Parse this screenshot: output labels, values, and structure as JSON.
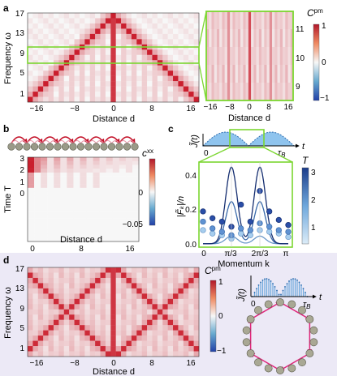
{
  "figure": {
    "panels": [
      {
        "label": "a"
      },
      {
        "label": "b"
      },
      {
        "label": "c"
      },
      {
        "label": "d"
      }
    ],
    "panel_a": {
      "ylabel": "Frequency ω",
      "xlabel": "Distance d",
      "yticks": [
        "1",
        "5",
        "9",
        "13",
        "17"
      ],
      "xticks": [
        "−16",
        "−8",
        "0",
        "8",
        "16"
      ],
      "colorbar_label": "C",
      "colorbar_sup": "pm",
      "colorbar_ticks": [
        "1",
        "0",
        "−1"
      ],
      "inset_xlabel": "Distance d",
      "inset_xticks": [
        "−16",
        "−8",
        "0",
        "8",
        "16"
      ],
      "inset_yticks": [
        "11",
        "10",
        "9"
      ]
    },
    "panel_b": {
      "ylabel": "Time T",
      "xlabel": "Distance d",
      "yticks": [
        "3",
        "2",
        "1",
        "0"
      ],
      "xticks": [
        "0",
        "8",
        "16"
      ],
      "colorbar_label": "c",
      "colorbar_sup": "xx",
      "colorbar_ticks": [
        "0",
        "−0.05"
      ]
    },
    "panel_c": {
      "ylabel": "|F̃ₖ|/n",
      "xlabel": "Momentum k",
      "yticks": [
        "0.4",
        "0.2",
        "0.0"
      ],
      "xticks": [
        "0",
        "π/3",
        "2π/3",
        "π"
      ],
      "drive_label": "J̃(t)",
      "drive_t": "t",
      "drive_zero": "0",
      "drive_tau": "τ",
      "drive_tau_sub": "B",
      "colorbar_label": "T",
      "colorbar_ticks": [
        "3",
        "2",
        "1"
      ]
    },
    "panel_d": {
      "ylabel": "Frequency ω",
      "xlabel": "Distance d",
      "yticks": [
        "1",
        "5",
        "9",
        "13",
        "17"
      ],
      "xticks": [
        "−16",
        "−8",
        "0",
        "8",
        "16"
      ],
      "colorbar_label": "C",
      "colorbar_sup": "pm",
      "colorbar_ticks": [
        "1",
        "0",
        "−1"
      ],
      "drive_label": "J̃(t)",
      "drive_t": "t",
      "drive_zero": "0",
      "drive_tau": "τ",
      "drive_tau_sub": "B"
    },
    "colors": {
      "accent_green": "#7bd630",
      "panel_d_bg": "#ece9f6",
      "mark_blue": "#2b4fae",
      "pink_arrow": "#e0257a",
      "heat_red": "#d11f2a"
    }
  },
  "chart_data": [
    {
      "type": "heatmap",
      "panel": "a",
      "title": "",
      "xlabel": "Distance d",
      "ylabel": "Frequency ω",
      "xlim": [
        -16,
        16
      ],
      "ylim": [
        1,
        17
      ],
      "colorbar": {
        "label": "Cpm",
        "range": [
          -1,
          1
        ]
      },
      "pattern": "V-shaped light cone: peak |d| ≈ 17 − ω, plus column at d = 0"
    },
    {
      "type": "heatmap",
      "panel": "a-inset",
      "xlabel": "Distance d",
      "xlim": [
        -16,
        16
      ],
      "ylim": [
        9,
        11
      ],
      "colorbar": {
        "label": "Cpm",
        "range": [
          -1,
          1
        ]
      }
    },
    {
      "type": "heatmap",
      "panel": "b",
      "xlabel": "Distance d",
      "ylabel": "Time T",
      "xlim": [
        0,
        16
      ],
      "ylim": [
        0,
        3
      ],
      "colorbar": {
        "label": "cxx",
        "range": [
          -0.05,
          0.05
        ]
      }
    },
    {
      "type": "scatter",
      "panel": "c",
      "xlabel": "Momentum k",
      "ylabel": "|F̃k|/n",
      "xlim": [
        0,
        3.1416
      ],
      "ylim": [
        0,
        0.5
      ],
      "x": [
        0,
        0.3491,
        0.6981,
        1.0472,
        1.3963,
        1.7453,
        2.0944,
        2.4435,
        2.7925,
        3.1416
      ],
      "series": [
        {
          "name": "T=3",
          "values": [
            0.21,
            0.17,
            0.15,
            0.12,
            0.25,
            0.15,
            0.33,
            0.21,
            0.16,
            0.13
          ]
        },
        {
          "name": "T=2",
          "values": [
            0.15,
            0.11,
            0.09,
            0.07,
            0.11,
            0.1,
            0.14,
            0.12,
            0.1,
            0.09
          ]
        },
        {
          "name": "T=1",
          "values": [
            0.1,
            0.08,
            0.07,
            0.05,
            0.08,
            0.07,
            0.1,
            0.09,
            0.08,
            0.06
          ]
        }
      ],
      "fit_peaks": [
        1.0472,
        2.0944
      ],
      "fit_peak_value": 0.45
    },
    {
      "type": "heatmap",
      "panel": "d",
      "xlabel": "Distance d",
      "ylabel": "Frequency ω",
      "xlim": [
        -16,
        16
      ],
      "ylim": [
        1,
        17
      ],
      "colorbar": {
        "label": "Cpm",
        "range": [
          -1,
          1
        ]
      },
      "pattern": "X-shaped crossing diagonals: peak |d| ≈ ω and |d| ≈ 18 − ω, plus column at d = 0"
    }
  ]
}
